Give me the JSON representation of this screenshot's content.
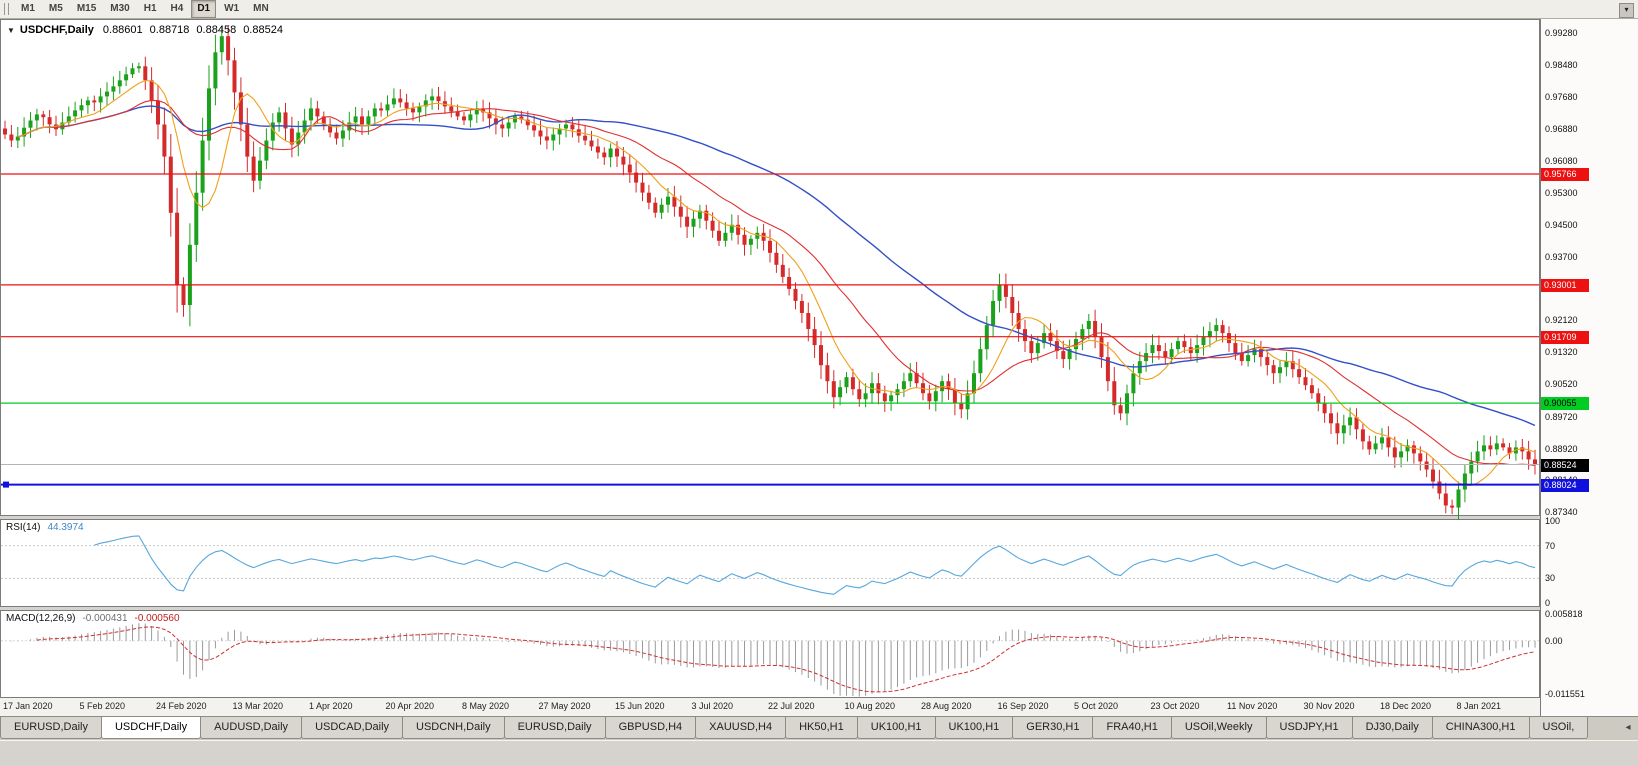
{
  "icons": {
    "collapse": "▼",
    "toolbar_more": "▾",
    "tab_scroll_left": "◂"
  },
  "toolbar": {
    "timeframes": [
      {
        "label": "M1",
        "active": false
      },
      {
        "label": "M5",
        "active": false
      },
      {
        "label": "M15",
        "active": false
      },
      {
        "label": "M30",
        "active": false
      },
      {
        "label": "H1",
        "active": false
      },
      {
        "label": "H4",
        "active": false
      },
      {
        "label": "D1",
        "active": true
      },
      {
        "label": "W1",
        "active": false
      },
      {
        "label": "MN",
        "active": false
      }
    ]
  },
  "chart": {
    "title": {
      "symbol": "USDCHF,Daily",
      "open": "0.88601",
      "high": "0.88718",
      "low": "0.88458",
      "close": "0.88524"
    }
  },
  "price_scale": {
    "ticks": [
      "0.99280",
      "0.98480",
      "0.97680",
      "0.96880",
      "0.96080",
      "0.95300",
      "0.94500",
      "0.93700",
      "0.92900",
      "0.92120",
      "0.91320",
      "0.90520",
      "0.89720",
      "0.88920",
      "0.88140",
      "0.87340"
    ]
  },
  "levels": [
    {
      "label": "0.95766",
      "value": 0.95766,
      "color": "red"
    },
    {
      "label": "0.93001",
      "value": 0.93001,
      "color": "red"
    },
    {
      "label": "0.91709",
      "value": 0.91709,
      "color": "red"
    },
    {
      "label": "0.90055",
      "value": 0.90055,
      "color": "green"
    },
    {
      "label": "0.88024",
      "value": 0.88024,
      "color": "blue"
    }
  ],
  "current_price": {
    "label": "0.88524",
    "value": 0.88524
  },
  "rsi": {
    "name": "RSI(14)",
    "value": "44.3974",
    "scale": [
      {
        "label": "100",
        "value": 100
      },
      {
        "label": "70",
        "value": 70
      },
      {
        "label": "30",
        "value": 30
      },
      {
        "label": "0",
        "value": 0
      }
    ],
    "levels": [
      70,
      30
    ]
  },
  "macd": {
    "name": "MACD(12,26,9)",
    "value1": "-0.000431",
    "value2": "-0.000560",
    "scale": [
      {
        "label": "0.005818",
        "value": 0.005818
      },
      {
        "label": "0.00",
        "value": 0
      },
      {
        "label": "-0.011551",
        "value": -0.011551
      }
    ]
  },
  "tabs": [
    {
      "label": "EURUSD,Daily",
      "active": false
    },
    {
      "label": "USDCHF,Daily",
      "active": true
    },
    {
      "label": "AUDUSD,Daily",
      "active": false
    },
    {
      "label": "USDCAD,Daily",
      "active": false
    },
    {
      "label": "USDCNH,Daily",
      "active": false
    },
    {
      "label": "EURUSD,Daily",
      "active": false
    },
    {
      "label": "GBPUSD,H4",
      "active": false
    },
    {
      "label": "XAUUSD,H4",
      "active": false
    },
    {
      "label": "HK50,H1",
      "active": false
    },
    {
      "label": "UK100,H1",
      "active": false
    },
    {
      "label": "UK100,H1",
      "active": false
    },
    {
      "label": "GER30,H1",
      "active": false
    },
    {
      "label": "FRA40,H1",
      "active": false
    },
    {
      "label": "USOil,Weekly",
      "active": false
    },
    {
      "label": "USDJPY,H1",
      "active": false
    },
    {
      "label": "DJ30,Daily",
      "active": false
    },
    {
      "label": "CHINA300,H1",
      "active": false
    },
    {
      "label": "USOil,",
      "active": false
    }
  ],
  "colors": {
    "up": "#1ba11b",
    "down": "#d42a2a",
    "ma_fast": "#f0a019",
    "ma_mid": "#e03030",
    "ma_slow": "#3350c8",
    "rsi": "#57a7dd",
    "macd_hist": "#9a9a9a",
    "macd_signal": "#d03030",
    "level_red": "#ee1111",
    "level_green": "#00cc22",
    "level_blue": "#1111dd",
    "bid": "#b5b5b5",
    "badge_black": "#000000"
  },
  "chart_data": {
    "type": "candlestick",
    "symbol": "USDCHF",
    "timeframe": "Daily",
    "title": "USDCHF,Daily",
    "ohlc_last": {
      "open": 0.88601,
      "high": 0.88718,
      "low": 0.88458,
      "close": 0.88524
    },
    "ylim": [
      0.8734,
      0.9928
    ],
    "label_every": 12,
    "x_labels": [
      "17 Jan 2020",
      "5 Feb 2020",
      "24 Feb 2020",
      "13 Mar 2020",
      "1 Apr 2020",
      "20 Apr 2020",
      "8 May 2020",
      "27 May 2020",
      "15 Jun 2020",
      "3 Jul 2020",
      "22 Jul 2020",
      "10 Aug 2020",
      "28 Aug 2020",
      "16 Sep 2020",
      "5 Oct 2020",
      "23 Oct 2020",
      "11 Nov 2020",
      "30 Nov 2020",
      "18 Dec 2020",
      "8 Jan 2021"
    ],
    "levels": {
      "resistance": [
        0.95766,
        0.93001,
        0.91709
      ],
      "support_green": 0.90055,
      "support_blue": 0.88024,
      "bid": 0.88524
    },
    "indicators": {
      "rsi_period": 14,
      "rsi_last": 44.3974,
      "macd": [
        12,
        26,
        9
      ],
      "macd_last": [
        -0.000431,
        -0.00056
      ],
      "ma_periods": [
        8,
        20,
        50
      ]
    },
    "closes": [
      0.9675,
      0.966,
      0.967,
      0.9692,
      0.971,
      0.9725,
      0.9718,
      0.97,
      0.9688,
      0.9705,
      0.972,
      0.9735,
      0.9748,
      0.976,
      0.9755,
      0.977,
      0.9782,
      0.9795,
      0.981,
      0.9825,
      0.984,
      0.9845,
      0.981,
      0.976,
      0.97,
      0.962,
      0.948,
      0.93,
      0.925,
      0.94,
      0.953,
      0.966,
      0.979,
      0.988,
      0.992,
      0.986,
      0.978,
      0.97,
      0.962,
      0.956,
      0.961,
      0.966,
      0.9705,
      0.973,
      0.969,
      0.965,
      0.968,
      0.971,
      0.974,
      0.972,
      0.97,
      0.968,
      0.9665,
      0.9685,
      0.9705,
      0.972,
      0.97,
      0.972,
      0.974,
      0.9735,
      0.975,
      0.9765,
      0.9755,
      0.974,
      0.973,
      0.9745,
      0.976,
      0.977,
      0.9758,
      0.9745,
      0.9732,
      0.972,
      0.971,
      0.9725,
      0.974,
      0.973,
      0.9715,
      0.97,
      0.969,
      0.9705,
      0.972,
      0.9712,
      0.9698,
      0.9685,
      0.967,
      0.966,
      0.9675,
      0.969,
      0.97,
      0.9688,
      0.9672,
      0.966,
      0.9645,
      0.963,
      0.9618,
      0.964,
      0.962,
      0.96,
      0.958,
      0.9555,
      0.953,
      0.9505,
      0.948,
      0.95,
      0.952,
      0.9495,
      0.947,
      0.9445,
      0.9465,
      0.9485,
      0.946,
      0.9435,
      0.941,
      0.943,
      0.945,
      0.9425,
      0.94,
      0.9415,
      0.943,
      0.941,
      0.938,
      0.935,
      0.932,
      0.929,
      0.926,
      0.923,
      0.919,
      0.915,
      0.91,
      0.906,
      0.902,
      0.9045,
      0.907,
      0.904,
      0.9015,
      0.903,
      0.9055,
      0.903,
      0.901,
      0.9025,
      0.904,
      0.906,
      0.908,
      0.9055,
      0.903,
      0.901,
      0.9035,
      0.906,
      0.904,
      0.9005,
      0.899,
      0.903,
      0.908,
      0.914,
      0.92,
      0.926,
      0.93,
      0.927,
      0.923,
      0.919,
      0.916,
      0.913,
      0.9155,
      0.918,
      0.916,
      0.9135,
      0.9115,
      0.914,
      0.9165,
      0.919,
      0.921,
      0.917,
      0.912,
      0.906,
      0.9,
      0.898,
      0.903,
      0.908,
      0.911,
      0.913,
      0.915,
      0.9135,
      0.912,
      0.914,
      0.916,
      0.9145,
      0.913,
      0.915,
      0.917,
      0.9185,
      0.92,
      0.918,
      0.9155,
      0.913,
      0.911,
      0.9125,
      0.914,
      0.912,
      0.91,
      0.908,
      0.9095,
      0.911,
      0.909,
      0.907,
      0.905,
      0.903,
      0.9005,
      0.898,
      0.8955,
      0.893,
      0.895,
      0.897,
      0.894,
      0.891,
      0.889,
      0.8905,
      0.892,
      0.8895,
      0.887,
      0.8885,
      0.89,
      0.888,
      0.886,
      0.884,
      0.881,
      0.878,
      0.875,
      0.8745,
      0.879,
      0.883,
      0.886,
      0.8885,
      0.89,
      0.889,
      0.8905,
      0.8895,
      0.888,
      0.8895,
      0.8885,
      0.8865,
      0.8852
    ]
  }
}
